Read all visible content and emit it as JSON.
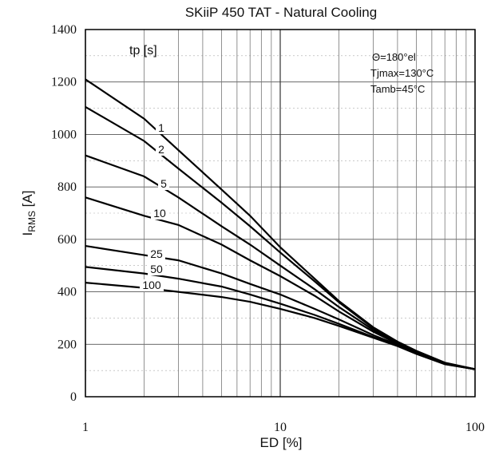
{
  "chart_data": {
    "type": "line",
    "title": "SKiiP 450 TAT - Natural Cooling",
    "xlabel": "ED [%]",
    "ylabel_main": "I",
    "ylabel_sub": "RMS",
    "ylabel_unit": " [A]",
    "x_scale": "log",
    "xlim": [
      1,
      100
    ],
    "ylim": [
      0,
      1400
    ],
    "x_ticks": [
      "1",
      "10",
      "100"
    ],
    "y_ticks": [
      "0",
      "200",
      "400",
      "600",
      "800",
      "1000",
      "1200",
      "1400"
    ],
    "grid": true,
    "legend_title": "tp [s]",
    "annotations": [
      "Θ=180°el",
      "Tjmax=130°C",
      "Tamb=45°C"
    ],
    "series": [
      {
        "name": "1",
        "x": [
          1,
          2,
          3,
          5,
          7,
          10,
          15,
          20,
          30,
          40,
          50,
          70,
          100
        ],
        "y": [
          1210,
          1060,
          940,
          790,
          690,
          570,
          450,
          365,
          265,
          210,
          175,
          130,
          105
        ]
      },
      {
        "name": "2",
        "x": [
          1,
          2,
          3,
          5,
          7,
          10,
          15,
          20,
          30,
          40,
          50,
          70,
          100
        ],
        "y": [
          1105,
          975,
          870,
          740,
          650,
          550,
          440,
          360,
          262,
          208,
          173,
          128,
          105
        ]
      },
      {
        "name": "5",
        "x": [
          1,
          2,
          3,
          5,
          7,
          10,
          15,
          20,
          30,
          40,
          50,
          70,
          100
        ],
        "y": [
          920,
          840,
          760,
          650,
          580,
          500,
          410,
          342,
          255,
          205,
          170,
          127,
          105
        ]
      },
      {
        "name": "10",
        "x": [
          1,
          2,
          3,
          5,
          7,
          10,
          15,
          20,
          30,
          40,
          50,
          70,
          100
        ],
        "y": [
          760,
          690,
          655,
          580,
          520,
          460,
          385,
          325,
          248,
          202,
          168,
          126,
          105
        ]
      },
      {
        "name": "25",
        "x": [
          1,
          2,
          3,
          5,
          7,
          10,
          15,
          20,
          30,
          40,
          50,
          70,
          100
        ],
        "y": [
          575,
          540,
          520,
          470,
          430,
          390,
          335,
          295,
          235,
          198,
          166,
          125,
          105
        ]
      },
      {
        "name": "50",
        "x": [
          1,
          2,
          3,
          5,
          7,
          10,
          15,
          20,
          30,
          40,
          50,
          70,
          100
        ],
        "y": [
          495,
          470,
          450,
          420,
          390,
          355,
          312,
          278,
          228,
          195,
          164,
          125,
          105
        ]
      },
      {
        "name": "100",
        "x": [
          1,
          2,
          3,
          5,
          7,
          10,
          15,
          20,
          30,
          40,
          50,
          70,
          100
        ],
        "y": [
          435,
          415,
          400,
          380,
          362,
          335,
          300,
          270,
          225,
          193,
          163,
          124,
          105
        ]
      }
    ]
  }
}
